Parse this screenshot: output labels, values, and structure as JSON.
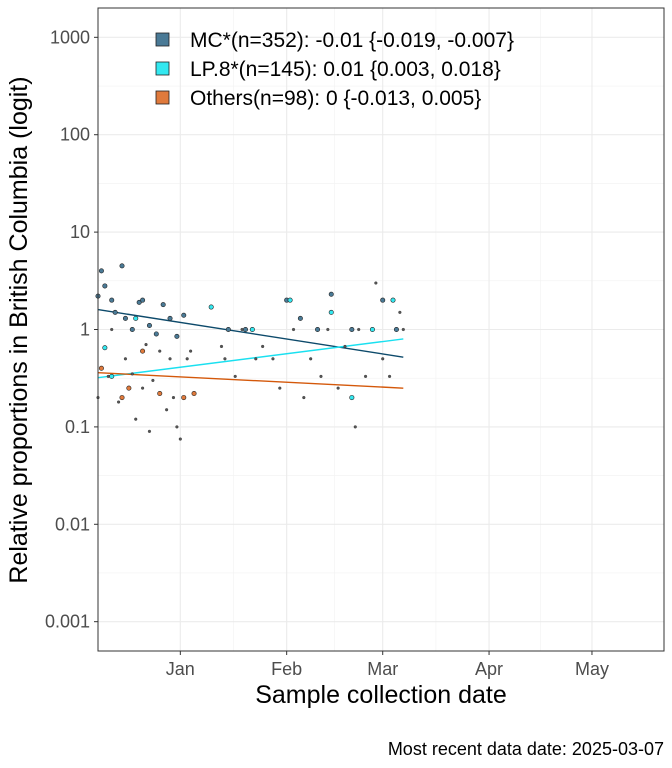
{
  "chart_data": {
    "type": "scatter",
    "xlabel": "Sample collection date",
    "ylabel": "Relative proportions in British Columbia (logit)",
    "caption": "Most recent data date: 2025-03-07",
    "y_scale": "logit",
    "grid": true,
    "legend_position": "top-left",
    "x_range": [
      "2024-12-08",
      "2025-05-22"
    ],
    "ylim": [
      0.0005,
      2000
    ],
    "x_ticks": [
      {
        "date": "2025-01-01",
        "label": "Jan"
      },
      {
        "date": "2025-02-01",
        "label": "Feb"
      },
      {
        "date": "2025-03-01",
        "label": "Mar"
      },
      {
        "date": "2025-04-01",
        "label": "Apr"
      },
      {
        "date": "2025-05-01",
        "label": "May"
      }
    ],
    "y_ticks": [
      {
        "value": 0.001,
        "label": "0.001"
      },
      {
        "value": 0.01,
        "label": "0.01"
      },
      {
        "value": 0.1,
        "label": "0.1"
      },
      {
        "value": 1,
        "label": "1"
      },
      {
        "value": 10,
        "label": "10"
      },
      {
        "value": 100,
        "label": "100"
      },
      {
        "value": 1000,
        "label": "1000"
      }
    ],
    "series": [
      {
        "name": "MC*(n=352): -0.01 {-0.019, -0.007}",
        "color": "#4a7a96",
        "line_color": "#0d4a6b",
        "trend": [
          {
            "date": "2024-12-08",
            "value": 1.6
          },
          {
            "date": "2025-03-07",
            "value": 0.52
          }
        ],
        "points": [
          {
            "date": "2024-12-08",
            "value": 2.2
          },
          {
            "date": "2024-12-09",
            "value": 4.0
          },
          {
            "date": "2024-12-10",
            "value": 2.8
          },
          {
            "date": "2024-12-12",
            "value": 2.0
          },
          {
            "date": "2024-12-13",
            "value": 1.5
          },
          {
            "date": "2024-12-15",
            "value": 4.5
          },
          {
            "date": "2024-12-16",
            "value": 1.3
          },
          {
            "date": "2024-12-18",
            "value": 1.0
          },
          {
            "date": "2024-12-20",
            "value": 1.9
          },
          {
            "date": "2024-12-21",
            "value": 2.0
          },
          {
            "date": "2024-12-23",
            "value": 1.1
          },
          {
            "date": "2024-12-25",
            "value": 0.9
          },
          {
            "date": "2024-12-27",
            "value": 1.8
          },
          {
            "date": "2024-12-29",
            "value": 1.3
          },
          {
            "date": "2024-12-31",
            "value": 0.85
          },
          {
            "date": "2025-01-02",
            "value": 1.4
          },
          {
            "date": "2025-01-15",
            "value": 1.0
          },
          {
            "date": "2025-01-20",
            "value": 1.0
          },
          {
            "date": "2025-02-01",
            "value": 2.0
          },
          {
            "date": "2025-02-05",
            "value": 1.3
          },
          {
            "date": "2025-02-10",
            "value": 1.0
          },
          {
            "date": "2025-02-14",
            "value": 2.3
          },
          {
            "date": "2025-02-20",
            "value": 1.0
          },
          {
            "date": "2025-03-01",
            "value": 2.0
          },
          {
            "date": "2025-03-05",
            "value": 1.0
          }
        ]
      },
      {
        "name": "LP.8*(n=145): 0.01 {0.003, 0.018}",
        "color": "#33e8f0",
        "line_color": "#1ae0f0",
        "trend": [
          {
            "date": "2024-12-08",
            "value": 0.32
          },
          {
            "date": "2025-03-07",
            "value": 0.8
          }
        ],
        "points": [
          {
            "date": "2024-12-10",
            "value": 0.65
          },
          {
            "date": "2024-12-12",
            "value": 0.33
          },
          {
            "date": "2024-12-19",
            "value": 1.3
          },
          {
            "date": "2025-01-10",
            "value": 1.7
          },
          {
            "date": "2025-01-22",
            "value": 1.0
          },
          {
            "date": "2025-02-02",
            "value": 2.0
          },
          {
            "date": "2025-02-14",
            "value": 1.5
          },
          {
            "date": "2025-02-20",
            "value": 0.2
          },
          {
            "date": "2025-02-26",
            "value": 1.0
          },
          {
            "date": "2025-03-04",
            "value": 2.0
          }
        ]
      },
      {
        "name": "Others(n=98): 0 {-0.013, 0.005}",
        "color": "#e07a3c",
        "line_color": "#d4580a",
        "trend": [
          {
            "date": "2024-12-08",
            "value": 0.36
          },
          {
            "date": "2025-03-07",
            "value": 0.25
          }
        ],
        "points": [
          {
            "date": "2024-12-09",
            "value": 0.4
          },
          {
            "date": "2024-12-15",
            "value": 0.2
          },
          {
            "date": "2024-12-17",
            "value": 0.25
          },
          {
            "date": "2024-12-21",
            "value": 0.6
          },
          {
            "date": "2024-12-26",
            "value": 0.22
          },
          {
            "date": "2025-01-02",
            "value": 0.2
          },
          {
            "date": "2025-01-05",
            "value": 0.22
          }
        ]
      },
      {
        "name": "",
        "color": "#555555",
        "points": [
          {
            "date": "2024-12-08",
            "value": 0.2
          },
          {
            "date": "2024-12-11",
            "value": 0.33
          },
          {
            "date": "2024-12-12",
            "value": 1.0
          },
          {
            "date": "2024-12-14",
            "value": 0.18
          },
          {
            "date": "2024-12-16",
            "value": 0.5
          },
          {
            "date": "2024-12-18",
            "value": 0.35
          },
          {
            "date": "2024-12-19",
            "value": 0.12
          },
          {
            "date": "2024-12-21",
            "value": 0.25
          },
          {
            "date": "2024-12-22",
            "value": 0.7
          },
          {
            "date": "2024-12-23",
            "value": 0.09
          },
          {
            "date": "2024-12-24",
            "value": 0.3
          },
          {
            "date": "2024-12-26",
            "value": 0.6
          },
          {
            "date": "2024-12-28",
            "value": 0.15
          },
          {
            "date": "2024-12-29",
            "value": 0.5
          },
          {
            "date": "2024-12-30",
            "value": 0.2
          },
          {
            "date": "2024-12-31",
            "value": 0.1
          },
          {
            "date": "2025-01-01",
            "value": 0.075
          },
          {
            "date": "2025-01-03",
            "value": 0.5
          },
          {
            "date": "2025-01-04",
            "value": 0.6
          },
          {
            "date": "2025-01-13",
            "value": 0.67
          },
          {
            "date": "2025-01-14",
            "value": 0.5
          },
          {
            "date": "2025-01-17",
            "value": 0.33
          },
          {
            "date": "2025-01-19",
            "value": 1.0
          },
          {
            "date": "2025-01-23",
            "value": 0.5
          },
          {
            "date": "2025-01-25",
            "value": 0.67
          },
          {
            "date": "2025-01-28",
            "value": 0.5
          },
          {
            "date": "2025-01-30",
            "value": 0.25
          },
          {
            "date": "2025-02-03",
            "value": 1.0
          },
          {
            "date": "2025-02-06",
            "value": 0.2
          },
          {
            "date": "2025-02-08",
            "value": 0.5
          },
          {
            "date": "2025-02-11",
            "value": 0.33
          },
          {
            "date": "2025-02-13",
            "value": 1.0
          },
          {
            "date": "2025-02-16",
            "value": 0.25
          },
          {
            "date": "2025-02-18",
            "value": 0.67
          },
          {
            "date": "2025-02-21",
            "value": 0.1
          },
          {
            "date": "2025-02-22",
            "value": 1.0
          },
          {
            "date": "2025-02-24",
            "value": 0.33
          },
          {
            "date": "2025-02-27",
            "value": 3.0
          },
          {
            "date": "2025-03-01",
            "value": 0.5
          },
          {
            "date": "2025-03-03",
            "value": 0.33
          },
          {
            "date": "2025-03-06",
            "value": 1.5
          },
          {
            "date": "2025-03-07",
            "value": 1.0
          }
        ]
      }
    ]
  }
}
